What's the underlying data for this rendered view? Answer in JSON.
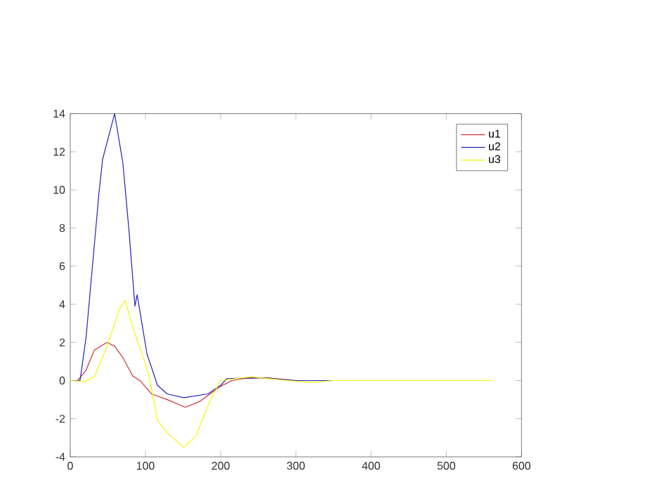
{
  "chart_data": {
    "type": "line",
    "xlim": [
      0,
      600
    ],
    "ylim": [
      -4,
      14
    ],
    "xticks": [
      0,
      100,
      200,
      300,
      400,
      500,
      600
    ],
    "yticks": [
      -4,
      -2,
      0,
      2,
      4,
      6,
      8,
      10,
      12,
      14
    ],
    "legend": "top right",
    "grid": false,
    "marker": "none",
    "line_style": "solid",
    "series": [
      {
        "name": "u1",
        "color": "#cc3333",
        "x": [
          0,
          10,
          21,
          32,
          49,
          59,
          70,
          83,
          94,
          108,
          129,
          153,
          172,
          186,
          200,
          215,
          230,
          260,
          300,
          350
        ],
        "values": [
          0,
          0,
          0.55,
          1.6,
          2.0,
          1.8,
          1.2,
          0.25,
          -0.05,
          -0.7,
          -1.0,
          -1.4,
          -1.1,
          -0.7,
          -0.3,
          0,
          0.1,
          0.15,
          0,
          0
        ]
      },
      {
        "name": "u2",
        "color": "#2222bb",
        "x": [
          0,
          13,
          21,
          38,
          43,
          59,
          70,
          78,
          86,
          89,
          94,
          102,
          116,
          129,
          151,
          183,
          200,
          208,
          255,
          300,
          350
        ],
        "values": [
          0,
          0,
          2.25,
          9.75,
          11.6,
          14,
          11.4,
          7.9,
          3.9,
          4.5,
          3.3,
          1.4,
          -0.25,
          -0.7,
          -0.9,
          -0.7,
          -0.25,
          0.1,
          0.15,
          0,
          0
        ]
      },
      {
        "name": "u3",
        "color": "#f5f500",
        "x": [
          0,
          20,
          32,
          49,
          65,
          73,
          81,
          89,
          94,
          105,
          116,
          129,
          151,
          167,
          186,
          200,
          240,
          290,
          320,
          350,
          560
        ],
        "values": [
          0,
          -0.05,
          0.2,
          1.8,
          3.7,
          4.2,
          3.1,
          2.1,
          1.6,
          0.2,
          -2.1,
          -2.75,
          -3.5,
          -2.9,
          -1.05,
          0,
          0.2,
          0,
          -0.1,
          0,
          0
        ]
      }
    ]
  }
}
